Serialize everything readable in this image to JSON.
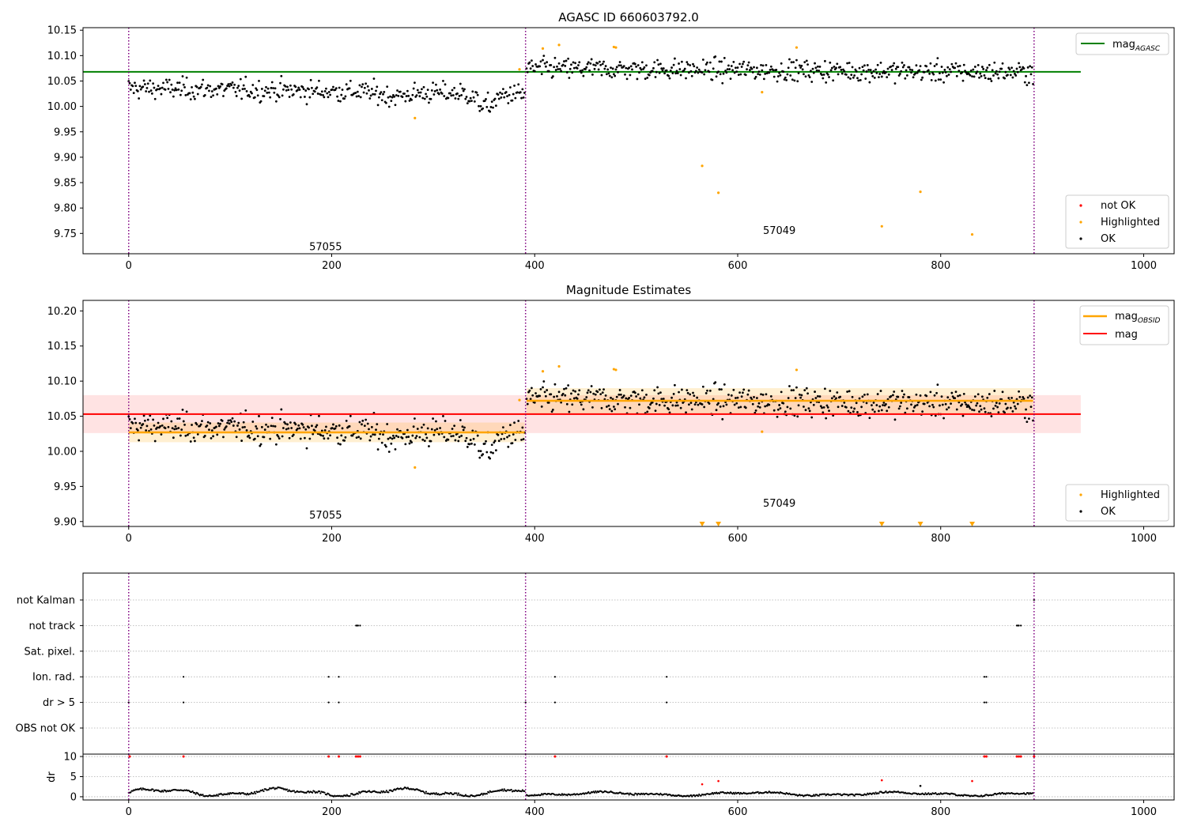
{
  "chart_data": [
    {
      "type": "scatter",
      "title": "AGASC ID 660603792.0",
      "xlabel": "",
      "ylabel": "",
      "xlim": [
        -45,
        1030
      ],
      "ylim": [
        9.71,
        10.155
      ],
      "xticks": [
        "0",
        "200",
        "400",
        "600",
        "800",
        "1000"
      ],
      "yticks": [
        "9.75",
        "9.80",
        "9.85",
        "9.90",
        "9.95",
        "10.00",
        "10.05",
        "10.10",
        "10.15"
      ],
      "grid": false,
      "obsid_boundaries": [
        0,
        391,
        892
      ],
      "obsid_labels": [
        {
          "text": "57055",
          "x": 194,
          "y": 9.725
        },
        {
          "text": "57049",
          "x": 641,
          "y": 9.757
        }
      ],
      "reference_line": {
        "name": "mag_AGASC",
        "value": 10.068,
        "x_range": [
          -45,
          938
        ],
        "color": "#008000"
      },
      "series": [
        {
          "name": "OK",
          "color": "#000000",
          "marker": "dot",
          "segments": [
            {
              "x_start": 0,
              "x_end": 390,
              "n": 390,
              "shape": "seg1"
            },
            {
              "x_start": 392,
              "x_end": 891,
              "n": 500,
              "shape": "seg2"
            }
          ]
        },
        {
          "name": "Highlighted",
          "color": "#ffa500",
          "marker": "dot",
          "x": [
            282,
            385,
            408,
            424,
            478,
            480,
            565,
            581,
            624,
            658,
            742,
            780,
            831
          ],
          "y": [
            9.977,
            10.073,
            10.114,
            10.121,
            10.117,
            10.116,
            9.883,
            9.83,
            10.028,
            10.116,
            9.764,
            9.832,
            9.748
          ]
        },
        {
          "name": "not OK",
          "color": "#ff0000",
          "marker": "dot",
          "x": [],
          "y": []
        }
      ],
      "legend_top": {
        "position": "top-right",
        "entries": [
          {
            "label": "mag",
            "sub": "AGASC"
          }
        ]
      },
      "legend_bottom": {
        "position": "lower-right",
        "entries": [
          "not OK",
          "Highlighted",
          "OK"
        ]
      }
    },
    {
      "type": "scatter",
      "title": "Magnitude Estimates",
      "xlabel": "",
      "ylabel": "",
      "xlim": [
        -45,
        1030
      ],
      "ylim": [
        9.893,
        10.215
      ],
      "xticks": [
        "0",
        "200",
        "400",
        "600",
        "800",
        "1000"
      ],
      "yticks": [
        "9.90",
        "9.95",
        "10.00",
        "10.05",
        "10.10",
        "10.15",
        "10.20"
      ],
      "grid": false,
      "obsid_boundaries": [
        0,
        391,
        892
      ],
      "obsid_labels": [
        {
          "text": "57055",
          "x": 194,
          "y": 9.91
        },
        {
          "text": "57049",
          "x": 641,
          "y": 9.927
        }
      ],
      "mag": {
        "name": "mag",
        "value": 10.053,
        "band": [
          10.026,
          10.08
        ],
        "x_range": [
          -45,
          938
        ],
        "color": "#ff0000"
      },
      "mag_obsid": [
        {
          "x_range": [
            0,
            390
          ],
          "value": 10.027,
          "band": [
            10.013,
            10.041
          ]
        },
        {
          "x_range": [
            392,
            891
          ],
          "value": 10.072,
          "band": [
            10.054,
            10.09
          ]
        }
      ],
      "offscale_markers_x": [
        565,
        581,
        742,
        780,
        831
      ],
      "series": [
        {
          "name": "OK",
          "color": "#000000",
          "marker": "dot",
          "same_as_panel": 0
        },
        {
          "name": "Highlighted",
          "color": "#ffa500",
          "marker": "dot",
          "x": [
            282,
            385,
            408,
            424,
            478,
            480,
            624,
            658
          ],
          "y": [
            9.977,
            10.073,
            10.114,
            10.121,
            10.117,
            10.116,
            10.028,
            10.116
          ]
        }
      ],
      "legend_top": {
        "position": "top-right",
        "entries": [
          {
            "label": "mag",
            "sub": "OBSID"
          },
          {
            "label": "mag",
            "sub": ""
          }
        ]
      },
      "legend_bottom": {
        "position": "lower-right",
        "entries": [
          "Highlighted",
          "OK"
        ]
      }
    },
    {
      "type": "scatter",
      "title": "",
      "xlabel": "",
      "ylabel": "",
      "xlim": [
        -45,
        1030
      ],
      "xticks": [
        "0",
        "200",
        "400",
        "600",
        "800",
        "1000"
      ],
      "categories": [
        "not Kalman",
        "not track",
        "Sat. pixel.",
        "Ion. rad.",
        "dr > 5",
        "OBS not OK"
      ],
      "grid": true,
      "obsid_boundaries": [
        0,
        391,
        892
      ],
      "flags": {
        "not Kalman": [
          892
        ],
        "not track": [
          224,
          225,
          226,
          228,
          875,
          876,
          877,
          879
        ],
        "Sat. pixel.": [],
        "Ion. rad.": [
          54,
          197,
          207,
          420,
          530,
          843,
          845
        ],
        "dr > 5": [
          0,
          54,
          197,
          207,
          391,
          420,
          530,
          843,
          845
        ],
        "OBS not OK": []
      }
    },
    {
      "type": "scatter",
      "title": "",
      "xlabel": "",
      "ylabel": "dr",
      "xlim": [
        -45,
        1030
      ],
      "ylim": [
        -0.8,
        10.6
      ],
      "xticks": [
        "0",
        "200",
        "400",
        "600",
        "800",
        "1000"
      ],
      "yticks": [
        "0",
        "5",
        "10"
      ],
      "grid": true,
      "obsid_boundaries": [
        0,
        391,
        892
      ],
      "capped_points_x": [
        1,
        54,
        197,
        207,
        224,
        226,
        228,
        420,
        530,
        843,
        845,
        875,
        877,
        879,
        892
      ],
      "red_points": {
        "x": [
          565,
          581,
          742,
          831
        ],
        "y": [
          3.1,
          3.9,
          4.1,
          3.9
        ]
      },
      "outlier_points": {
        "x": [
          780
        ],
        "y": [
          2.7
        ]
      }
    }
  ],
  "labels": {
    "ticks": {
      "t0": "0",
      "t200": "200",
      "t400": "400",
      "t600": "600",
      "t800": "800",
      "t1000": "1000"
    }
  }
}
